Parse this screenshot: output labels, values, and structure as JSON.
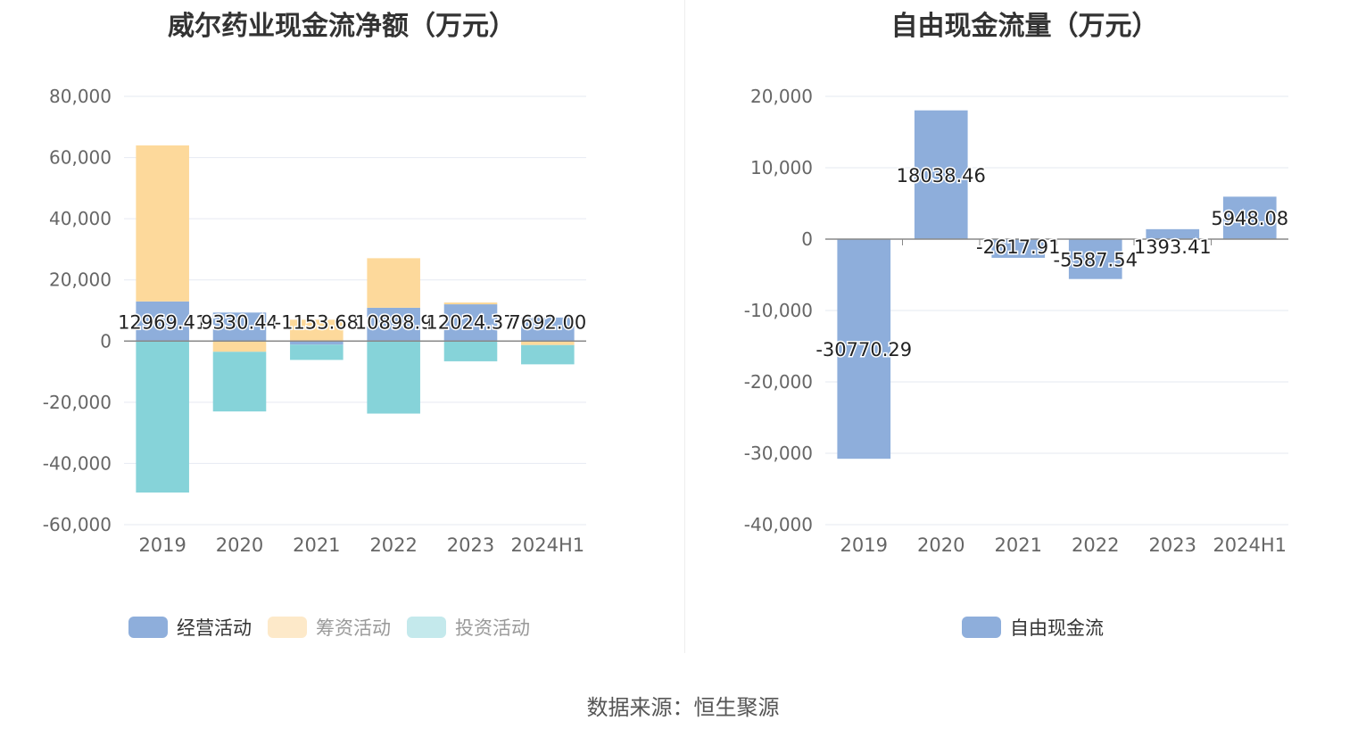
{
  "source_label": "数据来源：恒生聚源",
  "chart_data": [
    {
      "type": "bar",
      "stacked": true,
      "title": "威尔药业现金流净额（万元）",
      "categories": [
        "2019",
        "2020",
        "2021",
        "2022",
        "2023",
        "2024H1"
      ],
      "ylim": [
        -60000,
        80000
      ],
      "yticks": [
        "80,000",
        "60,000",
        "40,000",
        "20,000",
        "0",
        "-20,000",
        "-40,000",
        "-60,000"
      ],
      "ytick_values": [
        80000,
        60000,
        40000,
        20000,
        0,
        -20000,
        -40000,
        -60000
      ],
      "grid": true,
      "legend_position": "bottom",
      "series": [
        {
          "name": "经营活动",
          "color": "#8eaedb",
          "values": [
            12969.41,
            9330.44,
            -1153.68,
            10898.9,
            12024.37,
            7692.0
          ],
          "labels": [
            "12969.41",
            "9330.44",
            "-1153.68",
            "10898.9",
            "12024.37",
            "7692.00"
          ]
        },
        {
          "name": "筹资活动",
          "color": "#fdd99b",
          "values": [
            51000,
            -3500,
            7000,
            16200,
            600,
            -1300
          ]
        },
        {
          "name": "投资活动",
          "color": "#86d3d9",
          "values": [
            -49500,
            -19500,
            -5000,
            -23700,
            -6600,
            -6300
          ]
        }
      ],
      "legend": [
        {
          "name": "经营活动",
          "color": "#8eaedb",
          "active": true
        },
        {
          "name": "筹资活动",
          "color": "#fde9c9",
          "active": false
        },
        {
          "name": "投资活动",
          "color": "#c4e9ec",
          "active": false
        }
      ]
    },
    {
      "type": "bar",
      "title": "自由现金流量（万元）",
      "categories": [
        "2019",
        "2020",
        "2021",
        "2022",
        "2023",
        "2024H1"
      ],
      "ylim": [
        -40000,
        20000
      ],
      "yticks": [
        "20,000",
        "10,000",
        "0",
        "-10,000",
        "-20,000",
        "-30,000",
        "-40,000"
      ],
      "ytick_values": [
        20000,
        10000,
        0,
        -10000,
        -20000,
        -30000,
        -40000
      ],
      "grid": true,
      "legend_position": "bottom",
      "series": [
        {
          "name": "自由现金流",
          "color": "#8eaedb",
          "values": [
            -30770.29,
            18038.46,
            -2617.91,
            -5587.54,
            1393.41,
            5948.08
          ],
          "labels": [
            "-30770.29",
            "18038.46",
            "-2617.91",
            "-5587.54",
            "1393.41",
            "5948.08"
          ]
        }
      ],
      "legend": [
        {
          "name": "自由现金流",
          "color": "#8eaedb",
          "active": true
        }
      ]
    }
  ]
}
